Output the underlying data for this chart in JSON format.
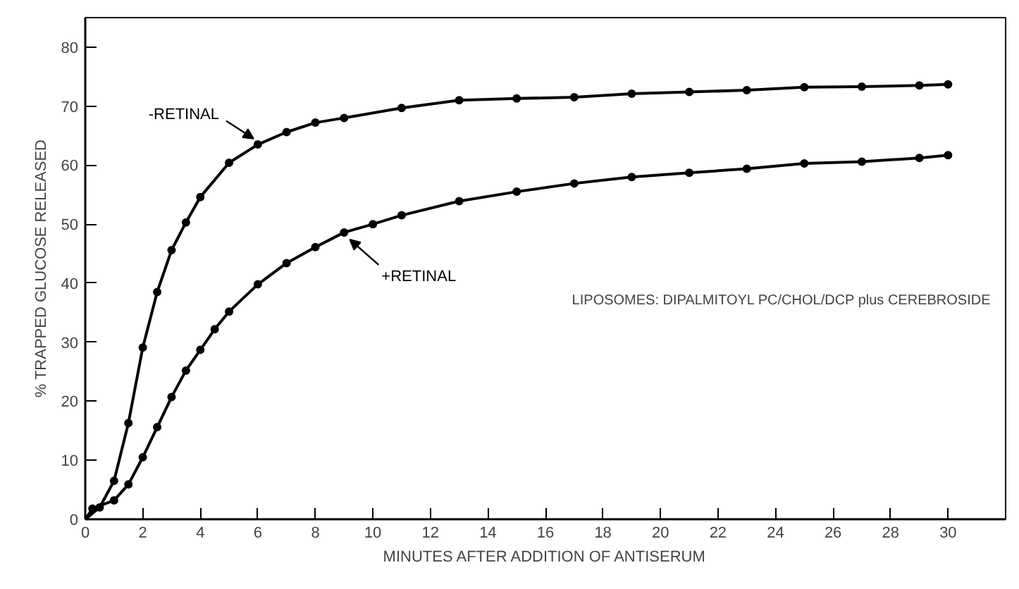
{
  "chart_data": {
    "type": "line",
    "xlabel": "MINUTES AFTER ADDITION OF ANTISERUM",
    "ylabel": "% TRAPPED GLUCOSE RELEASED",
    "xlim": [
      0,
      32
    ],
    "ylim": [
      0,
      85
    ],
    "xticks": [
      0,
      2,
      4,
      6,
      8,
      10,
      12,
      14,
      16,
      18,
      20,
      22,
      24,
      26,
      28,
      30
    ],
    "yticks": [
      0,
      10,
      20,
      30,
      40,
      50,
      60,
      70,
      80
    ],
    "grid": false,
    "marker": "circle",
    "line_style": "solid",
    "series": [
      {
        "name": "-RETINAL",
        "color": "#000000",
        "x": [
          0,
          0.5,
          1,
          1.5,
          2,
          2.5,
          3,
          3.5,
          4,
          5,
          6,
          7,
          8,
          9,
          11,
          13,
          15,
          17,
          19,
          21,
          23,
          25,
          27,
          29,
          30
        ],
        "values": [
          0,
          2,
          6.5,
          16.3,
          29.1,
          38.5,
          45.6,
          50.3,
          54.6,
          60.4,
          63.5,
          65.6,
          67.2,
          68,
          69.7,
          71,
          71.3,
          71.5,
          72.1,
          72.4,
          72.7,
          73.2,
          73.3,
          73.5,
          73.7
        ]
      },
      {
        "name": "+RETINAL",
        "color": "#000000",
        "x": [
          0,
          0.25,
          1,
          1.5,
          2,
          2.5,
          3,
          3.5,
          4,
          4.5,
          5,
          6,
          7,
          8,
          9,
          10,
          11,
          13,
          15,
          17,
          19,
          21,
          23,
          25,
          27,
          29,
          30
        ],
        "values": [
          0,
          1.8,
          3.2,
          5.9,
          10.5,
          15.6,
          20.7,
          25.2,
          28.7,
          32.2,
          35.2,
          39.8,
          43.4,
          46.1,
          48.6,
          50,
          51.5,
          53.9,
          55.5,
          56.9,
          58,
          58.7,
          59.4,
          60.3,
          60.6,
          61.2,
          61.7
        ]
      }
    ],
    "annotations": [
      "LIPOSOMES: DIPALMITOYL PC/CHOL/DCP plus CEREBROSIDE"
    ]
  }
}
